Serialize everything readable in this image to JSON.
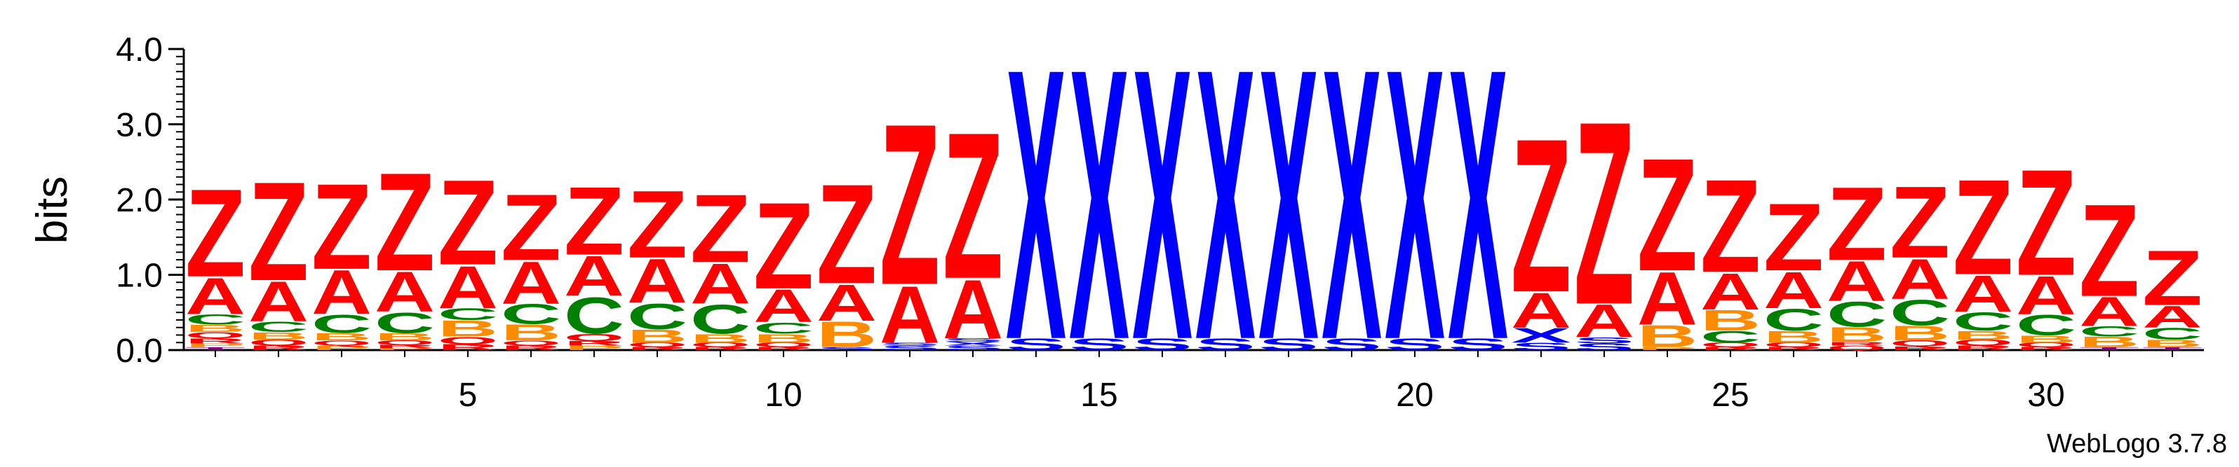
{
  "chart_data": {
    "type": "sequence_logo",
    "ylabel": "bits",
    "ylim": [
      0,
      4
    ],
    "y_ticks": [
      "0.0",
      "1.0",
      "2.0",
      "3.0",
      "4.0"
    ],
    "x_ticks": [
      5,
      10,
      15,
      20,
      25,
      30
    ],
    "positions": [
      1,
      2,
      3,
      4,
      5,
      6,
      7,
      8,
      9,
      10,
      11,
      12,
      13,
      14,
      15,
      16,
      17,
      18,
      19,
      20,
      21,
      22,
      23,
      24,
      25,
      26,
      27,
      28,
      29,
      30,
      31,
      32
    ],
    "colors": {
      "Z": "#ff0000",
      "A": "#ff0000",
      "X": "#0000ff",
      "S": "#0000ff",
      "C": "#008000",
      "B": "#ff8c00",
      "Q": "#ff0000",
      "R": "#ff0000",
      "P": "#ff8c00",
      "T": "#800080"
    },
    "stacks": [
      [
        [
          "T",
          0.04
        ],
        [
          "P",
          0.05
        ],
        [
          "R",
          0.07
        ],
        [
          "Q",
          0.08
        ],
        [
          "B",
          0.1
        ],
        [
          "C",
          0.14
        ],
        [
          "A",
          0.5
        ],
        [
          "Z",
          1.2
        ]
      ],
      [
        [
          "R",
          0.06
        ],
        [
          "Q",
          0.08
        ],
        [
          "B",
          0.1
        ],
        [
          "C",
          0.14
        ],
        [
          "A",
          0.55
        ],
        [
          "Z",
          1.35
        ]
      ],
      [
        [
          "P",
          0.06
        ],
        [
          "Q",
          0.07
        ],
        [
          "B",
          0.1
        ],
        [
          "C",
          0.25
        ],
        [
          "A",
          0.6
        ],
        [
          "Z",
          1.17
        ]
      ],
      [
        [
          "P",
          0.03
        ],
        [
          "R",
          0.04
        ],
        [
          "Q",
          0.06
        ],
        [
          "B",
          0.1
        ],
        [
          "C",
          0.28
        ],
        [
          "A",
          0.55
        ],
        [
          "Z",
          1.34
        ]
      ],
      [
        [
          "R",
          0.08
        ],
        [
          "Q",
          0.1
        ],
        [
          "B",
          0.22
        ],
        [
          "C",
          0.16
        ],
        [
          "A",
          0.58
        ],
        [
          "Z",
          1.16
        ]
      ],
      [
        [
          "R",
          0.06
        ],
        [
          "Q",
          0.07
        ],
        [
          "B",
          0.22
        ],
        [
          "C",
          0.27
        ],
        [
          "A",
          0.58
        ],
        [
          "Z",
          0.9
        ]
      ],
      [
        [
          "P",
          0.06
        ],
        [
          "R",
          0.06
        ],
        [
          "Q",
          0.1
        ],
        [
          "C",
          0.5
        ],
        [
          "A",
          0.55
        ],
        [
          "Z",
          0.93
        ]
      ],
      [
        [
          "R",
          0.04
        ],
        [
          "Q",
          0.06
        ],
        [
          "B",
          0.18
        ],
        [
          "C",
          0.35
        ],
        [
          "A",
          0.6
        ],
        [
          "Z",
          0.92
        ]
      ],
      [
        [
          "R",
          0.04
        ],
        [
          "Q",
          0.06
        ],
        [
          "B",
          0.12
        ],
        [
          "C",
          0.4
        ],
        [
          "A",
          0.55
        ],
        [
          "Z",
          0.93
        ]
      ],
      [
        [
          "R",
          0.04
        ],
        [
          "Q",
          0.06
        ],
        [
          "B",
          0.12
        ],
        [
          "C",
          0.15
        ],
        [
          "A",
          0.45
        ],
        [
          "Z",
          1.18
        ]
      ],
      [
        [
          "S",
          0.04
        ],
        [
          "B",
          0.35
        ],
        [
          "A",
          0.5
        ],
        [
          "Z",
          1.36
        ]
      ],
      [
        [
          "S",
          0.06
        ],
        [
          "S",
          0.04
        ],
        [
          "A",
          0.78
        ],
        [
          "Z",
          2.2
        ]
      ],
      [
        [
          "S",
          0.06
        ],
        [
          "X",
          0.05
        ],
        [
          "S",
          0.05
        ],
        [
          "A",
          0.8
        ],
        [
          "Z",
          2.0
        ]
      ],
      [
        [
          "S",
          0.16
        ],
        [
          "X",
          3.7
        ]
      ],
      [
        [
          "S",
          0.16
        ],
        [
          "X",
          3.7
        ]
      ],
      [
        [
          "S",
          0.16
        ],
        [
          "X",
          3.7
        ]
      ],
      [
        [
          "S",
          0.16
        ],
        [
          "X",
          3.7
        ]
      ],
      [
        [
          "S",
          0.16
        ],
        [
          "X",
          3.7
        ]
      ],
      [
        [
          "S",
          0.16
        ],
        [
          "X",
          3.7
        ]
      ],
      [
        [
          "S",
          0.16
        ],
        [
          "X",
          3.7
        ]
      ],
      [
        [
          "S",
          0.16
        ],
        [
          "X",
          3.7
        ]
      ],
      [
        [
          "S",
          0.1
        ],
        [
          "X",
          0.2
        ],
        [
          "A",
          0.48
        ],
        [
          "Z",
          2.1
        ]
      ],
      [
        [
          "S",
          0.09
        ],
        [
          "S",
          0.08
        ],
        [
          "A",
          0.45
        ],
        [
          "Z",
          2.5
        ]
      ],
      [
        [
          "P",
          0.04
        ],
        [
          "B",
          0.3
        ],
        [
          "A",
          0.72
        ],
        [
          "Z",
          1.54
        ]
      ],
      [
        [
          "R",
          0.04
        ],
        [
          "Q",
          0.06
        ],
        [
          "C",
          0.16
        ],
        [
          "B",
          0.28
        ],
        [
          "A",
          0.5
        ],
        [
          "Z",
          1.27
        ]
      ],
      [
        [
          "R",
          0.04
        ],
        [
          "Q",
          0.06
        ],
        [
          "B",
          0.16
        ],
        [
          "C",
          0.3
        ],
        [
          "A",
          0.5
        ],
        [
          "Z",
          0.92
        ]
      ],
      [
        [
          "Q",
          0.06
        ],
        [
          "R",
          0.05
        ],
        [
          "B",
          0.2
        ],
        [
          "C",
          0.34
        ],
        [
          "A",
          0.55
        ],
        [
          "Z",
          1.0
        ]
      ],
      [
        [
          "R",
          0.05
        ],
        [
          "Q",
          0.08
        ],
        [
          "B",
          0.2
        ],
        [
          "C",
          0.35
        ],
        [
          "A",
          0.55
        ],
        [
          "Z",
          0.98
        ]
      ],
      [
        [
          "R",
          0.06
        ],
        [
          "Q",
          0.08
        ],
        [
          "B",
          0.12
        ],
        [
          "C",
          0.25
        ],
        [
          "A",
          0.5
        ],
        [
          "Z",
          1.3
        ]
      ],
      [
        [
          "R",
          0.04
        ],
        [
          "Q",
          0.06
        ],
        [
          "B",
          0.1
        ],
        [
          "C",
          0.28
        ],
        [
          "A",
          0.52
        ],
        [
          "Z",
          1.45
        ]
      ],
      [
        [
          "T",
          0.04
        ],
        [
          "B",
          0.14
        ],
        [
          "C",
          0.14
        ],
        [
          "A",
          0.4
        ],
        [
          "Z",
          1.26
        ]
      ],
      [
        [
          "T",
          0.04
        ],
        [
          "B",
          0.1
        ],
        [
          "C",
          0.16
        ],
        [
          "A",
          0.3
        ],
        [
          "Z",
          0.75
        ]
      ]
    ]
  },
  "watermark": "WebLogo 3.7.8"
}
